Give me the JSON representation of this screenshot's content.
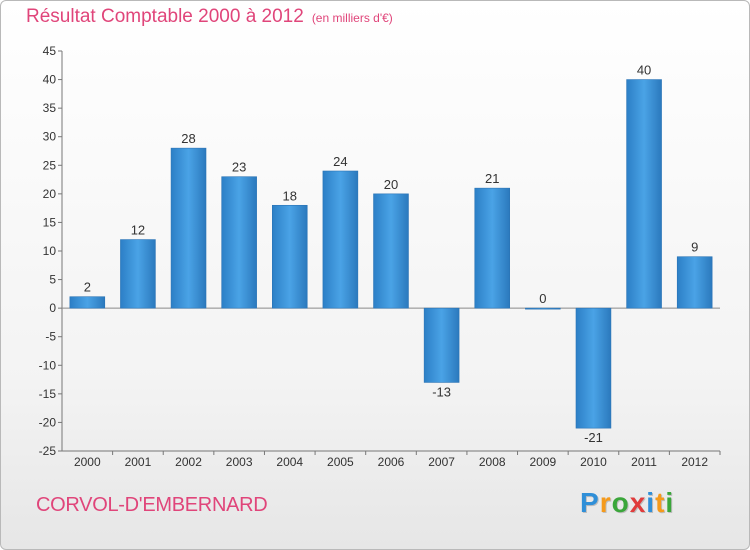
{
  "header": {
    "title": "Résultat Comptable 2000 à 2012",
    "unit": "(en milliers d'€)"
  },
  "footer": {
    "commune": "CORVOL-D'EMBERNARD",
    "brand_letters": [
      "P",
      "r",
      "o",
      "x",
      "i",
      "t",
      "i"
    ],
    "brand_colors": [
      "#2f8fd8",
      "#f59a1b",
      "#3aa63a",
      "#e03c3c",
      "#2f8fd8",
      "#f59a1b",
      "#3aa63a"
    ]
  },
  "chart_data": {
    "type": "bar",
    "title": "Résultat Comptable 2000 à 2012",
    "subtitle": "(en milliers d'€)",
    "xlabel": "",
    "ylabel": "",
    "categories": [
      "2000",
      "2001",
      "2002",
      "2003",
      "2004",
      "2005",
      "2006",
      "2007",
      "2008",
      "2009",
      "2010",
      "2011",
      "2012"
    ],
    "values": [
      2,
      12,
      28,
      23,
      18,
      24,
      20,
      -13,
      21,
      0,
      -21,
      40,
      9
    ],
    "value_labels": [
      "2",
      "12",
      "28",
      "23",
      "18",
      "24",
      "20",
      "-13",
      "21",
      "0",
      "-21",
      "40",
      "9"
    ],
    "ylim": [
      -25,
      45
    ],
    "yticks": [
      45,
      40,
      35,
      30,
      25,
      20,
      15,
      10,
      5,
      0,
      -5,
      -10,
      -15,
      -20,
      -25
    ],
    "ytick_labels": [
      "45",
      "40",
      "35",
      "30",
      "25",
      "20",
      "15",
      "10",
      "5",
      "0",
      "-5",
      "-10",
      "-15",
      "-20",
      "-25"
    ],
    "grid": false,
    "bar_color": "#3a8fd6"
  }
}
